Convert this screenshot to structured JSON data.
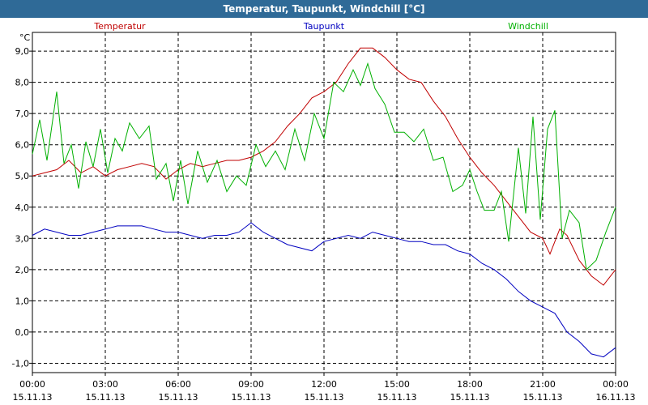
{
  "window": {
    "title": "Temperatur, Taupunkt, Windchill [°C]"
  },
  "colors": {
    "titlebar": "#2f6a97",
    "temperatur": "#c00000",
    "taupunkt": "#0000c0",
    "windchill": "#00b000",
    "grid": "#000000"
  },
  "chart_data": {
    "type": "line",
    "title": "Temperatur, Taupunkt, Windchill [°C]",
    "ylabel": "°C",
    "ylim": [
      -1.3,
      9.6
    ],
    "xlim_hours": [
      0,
      24
    ],
    "y_ticks": [
      {
        "value": 9,
        "label": "9,0"
      },
      {
        "value": 8,
        "label": "8,0"
      },
      {
        "value": 7,
        "label": "7,0"
      },
      {
        "value": 6,
        "label": "6,0"
      },
      {
        "value": 5,
        "label": "5,0"
      },
      {
        "value": 4,
        "label": "4,0"
      },
      {
        "value": 3,
        "label": "3,0"
      },
      {
        "value": 2,
        "label": "2,0"
      },
      {
        "value": 1,
        "label": "1,0"
      },
      {
        "value": 0,
        "label": "0,0"
      },
      {
        "value": -1,
        "label": "-1,0"
      }
    ],
    "x_ticks": [
      {
        "hour": 0,
        "time": "00:00",
        "date": "15.11.13"
      },
      {
        "hour": 3,
        "time": "03:00",
        "date": "15.11.13"
      },
      {
        "hour": 6,
        "time": "06:00",
        "date": "15.11.13"
      },
      {
        "hour": 9,
        "time": "09:00",
        "date": "15.11.13"
      },
      {
        "hour": 12,
        "time": "12:00",
        "date": "15.11.13"
      },
      {
        "hour": 15,
        "time": "15:00",
        "date": "15.11.13"
      },
      {
        "hour": 18,
        "time": "18:00",
        "date": "15.11.13"
      },
      {
        "hour": 21,
        "time": "21:00",
        "date": "15.11.13"
      },
      {
        "hour": 24,
        "time": "00:00",
        "date": "16.11.13"
      }
    ],
    "series": [
      {
        "name": "Temperatur",
        "color": "#c00000",
        "points": [
          [
            0,
            5.0
          ],
          [
            0.5,
            5.1
          ],
          [
            1,
            5.2
          ],
          [
            1.5,
            5.5
          ],
          [
            2,
            5.1
          ],
          [
            2.5,
            5.3
          ],
          [
            3,
            5.0
          ],
          [
            3.5,
            5.2
          ],
          [
            4,
            5.3
          ],
          [
            4.5,
            5.4
          ],
          [
            5,
            5.3
          ],
          [
            5.5,
            4.9
          ],
          [
            6,
            5.2
          ],
          [
            6.5,
            5.4
          ],
          [
            7,
            5.3
          ],
          [
            7.5,
            5.4
          ],
          [
            8,
            5.5
          ],
          [
            8.5,
            5.5
          ],
          [
            9,
            5.6
          ],
          [
            9.5,
            5.8
          ],
          [
            10,
            6.1
          ],
          [
            10.5,
            6.6
          ],
          [
            11,
            7.0
          ],
          [
            11.5,
            7.5
          ],
          [
            12,
            7.7
          ],
          [
            12.5,
            8.0
          ],
          [
            13,
            8.6
          ],
          [
            13.5,
            9.1
          ],
          [
            14,
            9.1
          ],
          [
            14.5,
            8.8
          ],
          [
            15,
            8.4
          ],
          [
            15.5,
            8.1
          ],
          [
            16,
            8.0
          ],
          [
            16.5,
            7.4
          ],
          [
            17,
            6.9
          ],
          [
            17.5,
            6.2
          ],
          [
            18,
            5.6
          ],
          [
            18.5,
            5.1
          ],
          [
            19,
            4.7
          ],
          [
            19.5,
            4.2
          ],
          [
            20,
            3.7
          ],
          [
            20.5,
            3.2
          ],
          [
            21,
            3.0
          ],
          [
            21.3,
            2.5
          ],
          [
            21.7,
            3.3
          ],
          [
            22,
            3.1
          ],
          [
            22.5,
            2.3
          ],
          [
            23,
            1.8
          ],
          [
            23.5,
            1.5
          ],
          [
            24,
            2.0
          ]
        ]
      },
      {
        "name": "Taupunkt",
        "color": "#0000c0",
        "points": [
          [
            0,
            3.1
          ],
          [
            0.5,
            3.3
          ],
          [
            1,
            3.2
          ],
          [
            1.5,
            3.1
          ],
          [
            2,
            3.1
          ],
          [
            2.5,
            3.2
          ],
          [
            3,
            3.3
          ],
          [
            3.5,
            3.4
          ],
          [
            4,
            3.4
          ],
          [
            4.5,
            3.4
          ],
          [
            5,
            3.3
          ],
          [
            5.5,
            3.2
          ],
          [
            6,
            3.2
          ],
          [
            6.5,
            3.1
          ],
          [
            7,
            3.0
          ],
          [
            7.5,
            3.1
          ],
          [
            8,
            3.1
          ],
          [
            8.5,
            3.2
          ],
          [
            9,
            3.5
          ],
          [
            9.5,
            3.2
          ],
          [
            10,
            3.0
          ],
          [
            10.5,
            2.8
          ],
          [
            11,
            2.7
          ],
          [
            11.5,
            2.6
          ],
          [
            12,
            2.9
          ],
          [
            12.5,
            3.0
          ],
          [
            13,
            3.1
          ],
          [
            13.5,
            3.0
          ],
          [
            14,
            3.2
          ],
          [
            14.5,
            3.1
          ],
          [
            15,
            3.0
          ],
          [
            15.5,
            2.9
          ],
          [
            16,
            2.9
          ],
          [
            16.5,
            2.8
          ],
          [
            17,
            2.8
          ],
          [
            17.5,
            2.6
          ],
          [
            18,
            2.5
          ],
          [
            18.5,
            2.2
          ],
          [
            19,
            2.0
          ],
          [
            19.5,
            1.7
          ],
          [
            20,
            1.3
          ],
          [
            20.5,
            1.0
          ],
          [
            21,
            0.8
          ],
          [
            21.5,
            0.6
          ],
          [
            22,
            0.0
          ],
          [
            22.5,
            -0.3
          ],
          [
            23,
            -0.7
          ],
          [
            23.5,
            -0.8
          ],
          [
            24,
            -0.5
          ]
        ]
      },
      {
        "name": "Windchill",
        "color": "#00b000",
        "points": [
          [
            0,
            5.7
          ],
          [
            0.3,
            6.8
          ],
          [
            0.6,
            5.5
          ],
          [
            1,
            7.7
          ],
          [
            1.3,
            5.4
          ],
          [
            1.6,
            6.0
          ],
          [
            1.9,
            4.6
          ],
          [
            2.2,
            6.1
          ],
          [
            2.5,
            5.3
          ],
          [
            2.8,
            6.5
          ],
          [
            3.1,
            5.1
          ],
          [
            3.4,
            6.2
          ],
          [
            3.7,
            5.8
          ],
          [
            4,
            6.7
          ],
          [
            4.4,
            6.2
          ],
          [
            4.8,
            6.6
          ],
          [
            5.1,
            4.9
          ],
          [
            5.5,
            5.4
          ],
          [
            5.8,
            4.2
          ],
          [
            6.1,
            5.5
          ],
          [
            6.4,
            4.1
          ],
          [
            6.8,
            5.8
          ],
          [
            7.2,
            4.8
          ],
          [
            7.6,
            5.5
          ],
          [
            8,
            4.5
          ],
          [
            8.4,
            5.0
          ],
          [
            8.8,
            4.7
          ],
          [
            9.2,
            6.0
          ],
          [
            9.6,
            5.3
          ],
          [
            10,
            5.8
          ],
          [
            10.4,
            5.2
          ],
          [
            10.8,
            6.5
          ],
          [
            11.2,
            5.5
          ],
          [
            11.6,
            7.0
          ],
          [
            12,
            6.2
          ],
          [
            12.4,
            8.0
          ],
          [
            12.8,
            7.7
          ],
          [
            13.2,
            8.4
          ],
          [
            13.5,
            7.9
          ],
          [
            13.8,
            8.6
          ],
          [
            14.1,
            7.8
          ],
          [
            14.5,
            7.3
          ],
          [
            14.9,
            6.4
          ],
          [
            15.3,
            6.4
          ],
          [
            15.7,
            6.1
          ],
          [
            16.1,
            6.5
          ],
          [
            16.5,
            5.5
          ],
          [
            16.9,
            5.6
          ],
          [
            17.3,
            4.5
          ],
          [
            17.7,
            4.7
          ],
          [
            18,
            5.2
          ],
          [
            18.3,
            4.5
          ],
          [
            18.6,
            3.9
          ],
          [
            19,
            3.9
          ],
          [
            19.3,
            4.5
          ],
          [
            19.6,
            2.9
          ],
          [
            20,
            5.9
          ],
          [
            20.3,
            3.8
          ],
          [
            20.6,
            6.9
          ],
          [
            20.9,
            3.6
          ],
          [
            21.2,
            6.5
          ],
          [
            21.5,
            7.1
          ],
          [
            21.8,
            3.0
          ],
          [
            22.1,
            3.9
          ],
          [
            22.5,
            3.5
          ],
          [
            22.8,
            2.0
          ],
          [
            23.2,
            2.3
          ],
          [
            23.6,
            3.2
          ],
          [
            24,
            4.0
          ]
        ]
      }
    ]
  }
}
